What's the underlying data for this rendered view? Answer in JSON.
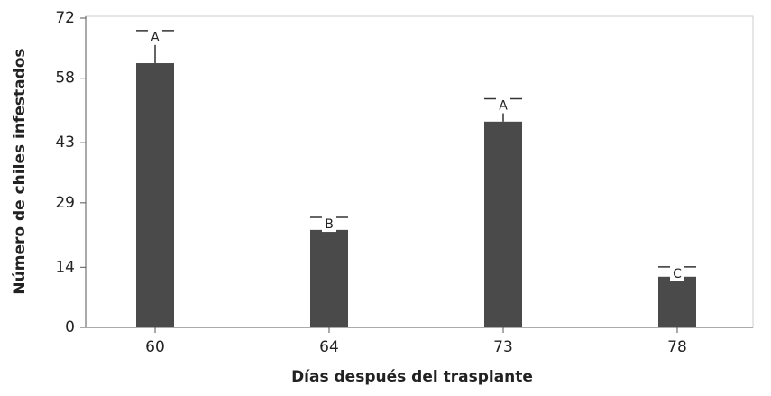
{
  "chart_data": {
    "type": "bar",
    "xlabel": "Días después del trasplante",
    "ylabel": "Número de chiles infestados",
    "categories": [
      "60",
      "64",
      "73",
      "78"
    ],
    "values": [
      61.5,
      22.7,
      47.9,
      11.8
    ],
    "errors": [
      7.6,
      2.9,
      5.3,
      2.3
    ],
    "letters": [
      "A",
      "B",
      "A",
      "C"
    ],
    "color": "#4a4a4a",
    "ylim": [
      0,
      72
    ],
    "yticks": [
      0,
      14,
      29,
      43,
      58,
      72
    ]
  }
}
